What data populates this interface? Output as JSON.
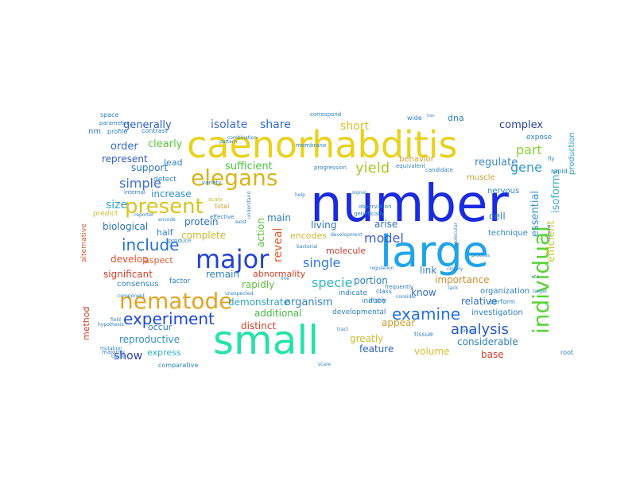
{
  "words": [
    {
      "text": "number",
      "color": "#1a2be0"
    },
    {
      "text": "caenorhabditis",
      "color": "#e8d21c"
    },
    {
      "text": "large",
      "color": "#1ea4e8"
    },
    {
      "text": "small",
      "color": "#25e2a8"
    },
    {
      "text": "major",
      "color": "#2442d8"
    },
    {
      "text": "elegans",
      "color": "#d8b41c"
    },
    {
      "text": "nematode",
      "color": "#e4a424"
    },
    {
      "text": "present",
      "color": "#d8c420"
    },
    {
      "text": "individual",
      "color": "#58d438"
    },
    {
      "text": "experiment",
      "color": "#1e48d8"
    },
    {
      "text": "include",
      "color": "#2470d8"
    },
    {
      "text": "examine",
      "color": "#2470d8"
    },
    {
      "text": "analysis",
      "color": "#2858c8"
    },
    {
      "text": "yield",
      "color": "#a8c828"
    },
    {
      "text": "gene",
      "color": "#3098c8"
    },
    {
      "text": "part",
      "color": "#88d438"
    },
    {
      "text": "reveal",
      "color": "#e85828"
    },
    {
      "text": "simple",
      "color": "#3c6cd8"
    },
    {
      "text": "specie",
      "color": "#30b4c0"
    },
    {
      "text": "single",
      "color": "#3078d8"
    },
    {
      "text": "model",
      "color": "#3c5cd0"
    },
    {
      "text": "isolate",
      "color": "#4070d0"
    },
    {
      "text": "share",
      "color": "#2c68c8"
    },
    {
      "text": "short",
      "color": "#d8c030"
    },
    {
      "text": "generally",
      "color": "#2c60c8"
    },
    {
      "text": "order",
      "color": "#2c6cc8"
    },
    {
      "text": "clearly",
      "color": "#58c838"
    },
    {
      "text": "complex",
      "color": "#30409c"
    },
    {
      "text": "efficient",
      "color": "#ccc830"
    },
    {
      "text": "essential",
      "color": "#3890c8"
    },
    {
      "text": "isoforms",
      "color": "#40b0c8"
    },
    {
      "text": "size",
      "color": "#30a0d0"
    },
    {
      "text": "support",
      "color": "#3078c0"
    },
    {
      "text": "represent",
      "color": "#2c5cc0"
    },
    {
      "text": "sufficient",
      "color": "#48c040"
    },
    {
      "text": "regulate",
      "color": "#3c88c8"
    },
    {
      "text": "increase",
      "color": "#3090c8"
    },
    {
      "text": "protein",
      "color": "#2c74c0"
    },
    {
      "text": "biological",
      "color": "#2c74b8"
    },
    {
      "text": "develop",
      "color": "#e05030"
    },
    {
      "text": "aspect",
      "color": "#e06030"
    },
    {
      "text": "significant",
      "color": "#d04028"
    },
    {
      "text": "complete",
      "color": "#c8b830"
    },
    {
      "text": "encodes",
      "color": "#c8b830"
    },
    {
      "text": "molecule",
      "color": "#c84030"
    },
    {
      "text": "action",
      "color": "#58c038"
    },
    {
      "text": "main",
      "color": "#3080c0"
    },
    {
      "text": "living",
      "color": "#3070c0"
    },
    {
      "text": "arise",
      "color": "#3070c0"
    },
    {
      "text": "cell",
      "color": "#3080c0"
    },
    {
      "text": "remain",
      "color": "#3080c0"
    },
    {
      "text": "rapidly",
      "color": "#60c040"
    },
    {
      "text": "demonstrate",
      "color": "#30a0c0"
    },
    {
      "text": "organism",
      "color": "#3080c0"
    },
    {
      "text": "link",
      "color": "#3080c0"
    },
    {
      "text": "portion",
      "color": "#3080c0"
    },
    {
      "text": "importance",
      "color": "#c89030"
    },
    {
      "text": "know",
      "color": "#3070c0"
    },
    {
      "text": "relative",
      "color": "#3070c0"
    },
    {
      "text": "additional",
      "color": "#48b840"
    },
    {
      "text": "distinct",
      "color": "#d04028"
    },
    {
      "text": "appear",
      "color": "#c8a030"
    },
    {
      "text": "greatly",
      "color": "#c8c030"
    },
    {
      "text": "feature",
      "color": "#3060c0"
    },
    {
      "text": "volume",
      "color": "#d8c030"
    },
    {
      "text": "considerable",
      "color": "#3080c0"
    },
    {
      "text": "base",
      "color": "#d04028"
    },
    {
      "text": "reproductive",
      "color": "#3090c0"
    },
    {
      "text": "express",
      "color": "#30b0c0"
    },
    {
      "text": "show",
      "color": "#3040c0"
    },
    {
      "text": "occur",
      "color": "#3080c0"
    },
    {
      "text": "abnormality",
      "color": "#d04028"
    },
    {
      "text": "half",
      "color": "#3080c0"
    },
    {
      "text": "method",
      "color": "#d04028"
    },
    {
      "text": "lead",
      "color": "#3080c0"
    },
    {
      "text": "dna",
      "color": "#3080c0"
    },
    {
      "text": "technique",
      "color": "#3080c0"
    },
    {
      "text": "production",
      "color": "#30a0c0"
    },
    {
      "text": "organization",
      "color": "#3080c0"
    },
    {
      "text": "investigation",
      "color": "#3080c0"
    },
    {
      "text": "alternative",
      "color": "#d06030"
    },
    {
      "text": "consensus",
      "color": "#3080c0"
    },
    {
      "text": "nervous",
      "color": "#3080c0"
    },
    {
      "text": "muscle",
      "color": "#c8a030"
    },
    {
      "text": "behavior",
      "color": "#c8a030"
    },
    {
      "text": "expose",
      "color": "#3080c0"
    },
    {
      "text": "detect",
      "color": "#3080c0"
    },
    {
      "text": "predict",
      "color": "#c8c030"
    },
    {
      "text": "comparative",
      "color": "#3080c0"
    },
    {
      "text": "factor",
      "color": "#3080c0"
    },
    {
      "text": "induce",
      "color": "#3080c0"
    },
    {
      "text": "indicate",
      "color": "#3080c0"
    },
    {
      "text": "developmental",
      "color": "#3080c0"
    },
    {
      "text": "imply",
      "color": "#3080c0"
    },
    {
      "text": "tissue",
      "color": "#3080c0"
    },
    {
      "text": "perform",
      "color": "#3080c0"
    },
    {
      "text": "space",
      "color": "#3080c0"
    },
    {
      "text": "parameter",
      "color": "#3080c0"
    },
    {
      "text": "contrast",
      "color": "#3080c0"
    },
    {
      "text": "total",
      "color": "#c8a030"
    },
    {
      "text": "scale",
      "color": "#c8c030"
    },
    {
      "text": "root",
      "color": "#3080c0"
    },
    {
      "text": "wide",
      "color": "#3080c0"
    },
    {
      "text": "class",
      "color": "#3080c0"
    },
    {
      "text": "rapid",
      "color": "#3080c0"
    },
    {
      "text": "fly",
      "color": "#3080c0"
    },
    {
      "text": "profile",
      "color": "#3080c0"
    },
    {
      "text": "nm",
      "color": "#3080c0"
    },
    {
      "text": "variety",
      "color": "#3080c0"
    },
    {
      "text": "internal",
      "color": "#3080c0"
    },
    {
      "text": "effective",
      "color": "#3080c0"
    },
    {
      "text": "genetically",
      "color": "#3080c0"
    },
    {
      "text": "frequently",
      "color": "#3080c0"
    },
    {
      "text": "equivalent",
      "color": "#3080c0"
    },
    {
      "text": "candidate",
      "color": "#3080c0"
    },
    {
      "text": "progression",
      "color": "#3080c0"
    },
    {
      "text": "membrane",
      "color": "#3080c0"
    },
    {
      "text": "combination",
      "color": "#3080c0"
    },
    {
      "text": "correspond",
      "color": "#3080c0"
    },
    {
      "text": "observation",
      "color": "#3080c0"
    },
    {
      "text": "majority",
      "color": "#3080c0"
    },
    {
      "text": "hypothesis",
      "color": "#3080c0"
    },
    {
      "text": "field",
      "color": "#3080c0"
    },
    {
      "text": "encode",
      "color": "#3080c0"
    },
    {
      "text": "produce",
      "color": "#3080c0"
    },
    {
      "text": "understand",
      "color": "#3080c0"
    },
    {
      "text": "development",
      "color": "#3080c0"
    },
    {
      "text": "target",
      "color": "#3080c0"
    },
    {
      "text": "respond",
      "color": "#3080c0"
    },
    {
      "text": "lack",
      "color": "#3080c0"
    },
    {
      "text": "help",
      "color": "#3080c0"
    },
    {
      "text": "exist",
      "color": "#3080c0"
    },
    {
      "text": "signal",
      "color": "#3080c0"
    },
    {
      "text": "similar",
      "color": "#3080c0"
    },
    {
      "text": "unexpected",
      "color": "#3080c0"
    },
    {
      "text": "cause",
      "color": "#3080c0"
    },
    {
      "text": "regulation",
      "color": "#3080c0"
    },
    {
      "text": "component",
      "color": "#3080c0"
    },
    {
      "text": "reporter",
      "color": "#3080c0"
    },
    {
      "text": "pattern",
      "color": "#3080c0"
    },
    {
      "text": "line",
      "color": "#3080c0"
    },
    {
      "text": "tract",
      "color": "#3080c0"
    },
    {
      "text": "molecular",
      "color": "#3080c0"
    },
    {
      "text": "process",
      "color": "#3080c0"
    },
    {
      "text": "bacterial",
      "color": "#3080c0"
    },
    {
      "text": "consider",
      "color": "#3080c0"
    },
    {
      "text": "closely",
      "color": "#3080c0"
    },
    {
      "text": "mutation",
      "color": "#3080c0"
    },
    {
      "text": "to",
      "color": "#3080c0"
    },
    {
      "text": "tion",
      "color": "#3080c0"
    },
    {
      "text": "scare",
      "color": "#3080c0"
    }
  ]
}
